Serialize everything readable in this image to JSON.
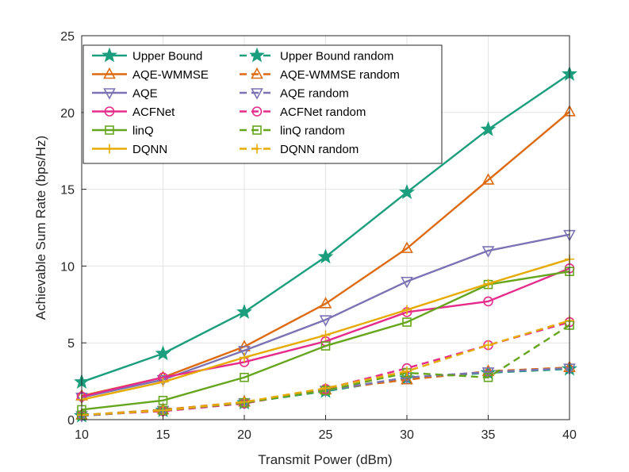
{
  "chart_data": {
    "type": "line",
    "title": "",
    "xlabel": "Transmit Power (dBm)",
    "ylabel": "Achievable Sum Rate (bps/Hz)",
    "x": [
      10,
      15,
      20,
      25,
      30,
      35,
      40
    ],
    "xlim": [
      10,
      40
    ],
    "ylim": [
      0,
      25
    ],
    "xticks": [
      "10",
      "15",
      "20",
      "25",
      "30",
      "35",
      "40"
    ],
    "yticks": [
      "0",
      "5",
      "10",
      "15",
      "20",
      "25"
    ],
    "grid": true,
    "legend_position": "top-left",
    "series": [
      {
        "name": "Upper Bound",
        "color": "#1a9e7d",
        "marker": "star",
        "dash": false,
        "values": [
          2.45,
          4.3,
          7.0,
          10.6,
          14.8,
          18.9,
          22.5
        ]
      },
      {
        "name": "AQE-WMMSE",
        "color": "#de6a10",
        "marker": "triangle-up",
        "dash": false,
        "values": [
          1.55,
          2.75,
          4.75,
          7.55,
          11.15,
          15.6,
          20.05
        ]
      },
      {
        "name": "AQE",
        "color": "#7b73b4",
        "marker": "triangle-down",
        "dash": false,
        "values": [
          1.45,
          2.6,
          4.5,
          6.5,
          9.0,
          11.0,
          12.05
        ]
      },
      {
        "name": "ACFNet",
        "color": "#e52b8a",
        "marker": "circle",
        "dash": false,
        "values": [
          1.5,
          2.75,
          3.75,
          5.1,
          7.0,
          7.7,
          9.85
        ]
      },
      {
        "name": "linQ",
        "color": "#66a61e",
        "marker": "square",
        "dash": false,
        "values": [
          0.65,
          1.25,
          2.75,
          4.8,
          6.35,
          8.8,
          9.65
        ]
      },
      {
        "name": "DQNN",
        "color": "#e6ab02",
        "marker": "plus",
        "dash": false,
        "values": [
          1.3,
          2.45,
          4.05,
          5.5,
          7.15,
          8.85,
          10.45
        ]
      },
      {
        "name": "Upper Bound random",
        "color": "#1a9e7d",
        "marker": "star",
        "dash": true,
        "values": [
          0.25,
          0.6,
          1.1,
          1.85,
          2.7,
          3.05,
          3.3
        ]
      },
      {
        "name": "AQE-WMMSE random",
        "color": "#de6a10",
        "marker": "triangle-up",
        "dash": true,
        "values": [
          0.3,
          0.65,
          1.15,
          1.95,
          2.6,
          3.15,
          3.4
        ]
      },
      {
        "name": "AQE random",
        "color": "#7b73b4",
        "marker": "triangle-down",
        "dash": true,
        "values": [
          0.25,
          0.6,
          1.1,
          1.9,
          2.75,
          3.1,
          3.35
        ]
      },
      {
        "name": "ACFNet random",
        "color": "#e52b8a",
        "marker": "circle",
        "dash": true,
        "values": [
          0.3,
          0.55,
          1.05,
          2.0,
          3.35,
          4.85,
          6.35
        ]
      },
      {
        "name": "linQ random",
        "color": "#66a61e",
        "marker": "square",
        "dash": true,
        "values": [
          0.3,
          0.6,
          1.1,
          1.9,
          3.05,
          2.75,
          6.15
        ]
      },
      {
        "name": "DQNN random",
        "color": "#e6ab02",
        "marker": "plus",
        "dash": true,
        "values": [
          0.3,
          0.6,
          1.15,
          2.05,
          3.15,
          4.85,
          6.45
        ]
      }
    ]
  }
}
